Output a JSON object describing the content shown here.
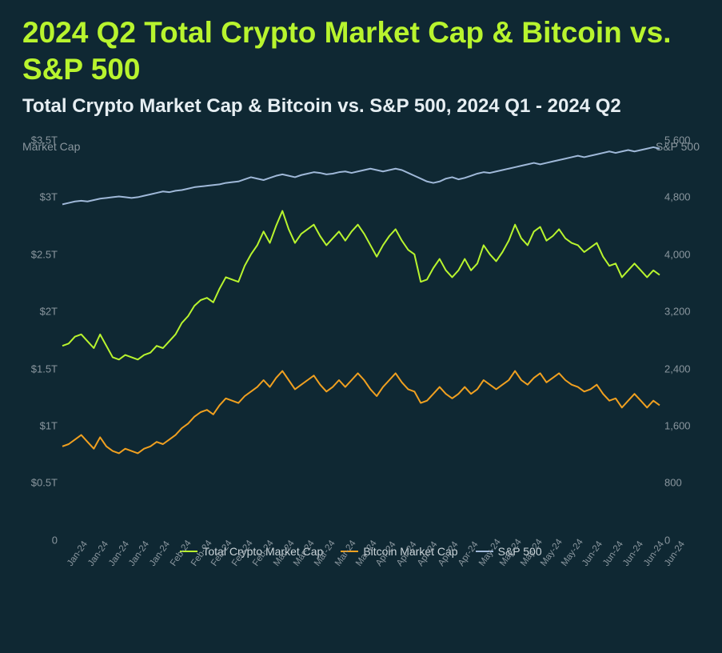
{
  "title": "2024 Q2 Total Crypto Market Cap & Bitcoin vs. S&P 500",
  "subtitle": "Total Crypto Market Cap & Bitcoin vs. S&P 500, 2024 Q1 - 2024 Q2",
  "chart": {
    "type": "line",
    "background_color": "#0f2833",
    "grid_color": "none",
    "left_axis": {
      "label": "Market Cap",
      "ticks": [
        0,
        0.5,
        1,
        1.5,
        2,
        2.5,
        3,
        3.5
      ],
      "tick_labels": [
        "0",
        "$0.5T",
        "$1T",
        "$1.5T",
        "$2T",
        "$2.5T",
        "$3T",
        "$3.5T"
      ],
      "min": 0,
      "max": 3.5
    },
    "right_axis": {
      "label": "S&P 500",
      "ticks": [
        0,
        800,
        1600,
        2400,
        3200,
        4000,
        4800,
        5600
      ],
      "tick_labels": [
        "0",
        "800",
        "1,600",
        "2,400",
        "3,200",
        "4,000",
        "4,800",
        "5,600"
      ],
      "min": 0,
      "max": 5600
    },
    "x_labels": [
      "Jan-24",
      "Jan-24",
      "Jan-24",
      "Jan-24",
      "Jan-24",
      "Feb-24",
      "Feb-24",
      "Feb-24",
      "Feb-24",
      "Feb-24",
      "Mar-24",
      "Mar-24",
      "Mar-24",
      "Mar-24",
      "Mar-24",
      "Apr-24",
      "Apr-24",
      "Apr-24",
      "Apr-24",
      "Apr-24",
      "May-24",
      "May-24",
      "May-24",
      "May-24",
      "May-24",
      "Jun-24",
      "Jun-24",
      "Jun-24",
      "Jun-24",
      "Jun-24"
    ],
    "legend": [
      {
        "label": "Total Crypto Market Cap",
        "color": "#b8f42e"
      },
      {
        "label": "Bitcoin Market Cap",
        "color": "#f0a020"
      },
      {
        "label": "S&P 500",
        "color": "#9fb8d8"
      }
    ],
    "series": [
      {
        "name": "total_crypto",
        "axis": "left",
        "color": "#b8f42e",
        "stroke_width": 2,
        "values": [
          1.7,
          1.72,
          1.78,
          1.8,
          1.74,
          1.68,
          1.8,
          1.7,
          1.6,
          1.58,
          1.62,
          1.6,
          1.58,
          1.62,
          1.64,
          1.7,
          1.68,
          1.74,
          1.8,
          1.9,
          1.96,
          2.05,
          2.1,
          2.12,
          2.08,
          2.2,
          2.3,
          2.28,
          2.26,
          2.4,
          2.5,
          2.58,
          2.7,
          2.6,
          2.75,
          2.88,
          2.72,
          2.6,
          2.68,
          2.72,
          2.76,
          2.66,
          2.58,
          2.64,
          2.7,
          2.62,
          2.7,
          2.76,
          2.68,
          2.58,
          2.48,
          2.58,
          2.66,
          2.72,
          2.62,
          2.54,
          2.5,
          2.26,
          2.28,
          2.38,
          2.46,
          2.36,
          2.3,
          2.36,
          2.46,
          2.36,
          2.42,
          2.58,
          2.5,
          2.44,
          2.52,
          2.62,
          2.76,
          2.64,
          2.58,
          2.7,
          2.74,
          2.62,
          2.66,
          2.72,
          2.64,
          2.6,
          2.58,
          2.52,
          2.56,
          2.6,
          2.48,
          2.4,
          2.42,
          2.3,
          2.36,
          2.42,
          2.36,
          2.3,
          2.36,
          2.32
        ]
      },
      {
        "name": "bitcoin",
        "axis": "left",
        "color": "#f0a020",
        "stroke_width": 2,
        "values": [
          0.82,
          0.84,
          0.88,
          0.92,
          0.86,
          0.8,
          0.9,
          0.82,
          0.78,
          0.76,
          0.8,
          0.78,
          0.76,
          0.8,
          0.82,
          0.86,
          0.84,
          0.88,
          0.92,
          0.98,
          1.02,
          1.08,
          1.12,
          1.14,
          1.1,
          1.18,
          1.24,
          1.22,
          1.2,
          1.26,
          1.3,
          1.34,
          1.4,
          1.34,
          1.42,
          1.48,
          1.4,
          1.32,
          1.36,
          1.4,
          1.44,
          1.36,
          1.3,
          1.34,
          1.4,
          1.34,
          1.4,
          1.46,
          1.4,
          1.32,
          1.26,
          1.34,
          1.4,
          1.46,
          1.38,
          1.32,
          1.3,
          1.2,
          1.22,
          1.28,
          1.34,
          1.28,
          1.24,
          1.28,
          1.34,
          1.28,
          1.32,
          1.4,
          1.36,
          1.32,
          1.36,
          1.4,
          1.48,
          1.4,
          1.36,
          1.42,
          1.46,
          1.38,
          1.42,
          1.46,
          1.4,
          1.36,
          1.34,
          1.3,
          1.32,
          1.36,
          1.28,
          1.22,
          1.24,
          1.16,
          1.22,
          1.28,
          1.22,
          1.16,
          1.22,
          1.18
        ]
      },
      {
        "name": "sp500",
        "axis": "right",
        "color": "#9fb8d8",
        "stroke_width": 2,
        "values": [
          4700,
          4720,
          4740,
          4750,
          4740,
          4760,
          4780,
          4790,
          4800,
          4810,
          4800,
          4790,
          4800,
          4820,
          4840,
          4860,
          4880,
          4870,
          4890,
          4900,
          4920,
          4940,
          4950,
          4960,
          4970,
          4980,
          5000,
          5010,
          5020,
          5050,
          5080,
          5060,
          5040,
          5070,
          5100,
          5120,
          5100,
          5080,
          5110,
          5130,
          5150,
          5140,
          5120,
          5130,
          5150,
          5160,
          5140,
          5160,
          5180,
          5200,
          5180,
          5160,
          5180,
          5200,
          5180,
          5140,
          5100,
          5060,
          5020,
          5000,
          5020,
          5060,
          5080,
          5050,
          5070,
          5100,
          5130,
          5150,
          5140,
          5160,
          5180,
          5200,
          5220,
          5240,
          5260,
          5280,
          5260,
          5280,
          5300,
          5320,
          5340,
          5360,
          5380,
          5360,
          5380,
          5400,
          5420,
          5440,
          5420,
          5440,
          5460,
          5440,
          5460,
          5480,
          5500,
          5480
        ]
      }
    ]
  }
}
